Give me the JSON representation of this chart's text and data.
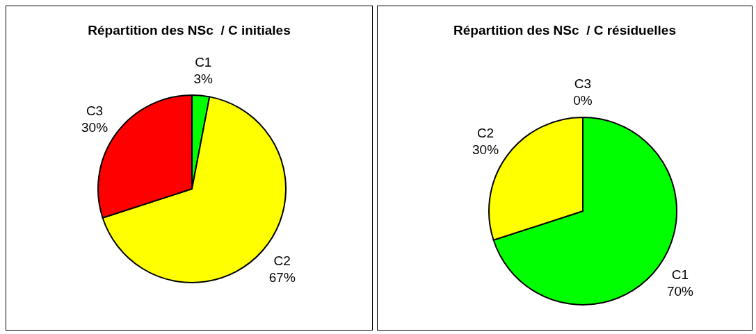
{
  "chart_data": [
    {
      "type": "pie",
      "title": "Répartition des NSc  / C initiales",
      "categories": [
        "C1",
        "C2",
        "C3"
      ],
      "values": [
        3,
        67,
        30
      ],
      "colors": [
        "#00ff00",
        "#ffff00",
        "#ff0000"
      ],
      "value_labels": [
        "3%",
        "67%",
        "30%"
      ]
    },
    {
      "type": "pie",
      "title": "Répartition des NSc  / C résiduelles",
      "categories": [
        "C1",
        "C2",
        "C3"
      ],
      "values": [
        70,
        30,
        0
      ],
      "colors": [
        "#00ff00",
        "#ffff00",
        "#ff0000"
      ],
      "value_labels": [
        "70%",
        "30%",
        "0%"
      ]
    }
  ]
}
